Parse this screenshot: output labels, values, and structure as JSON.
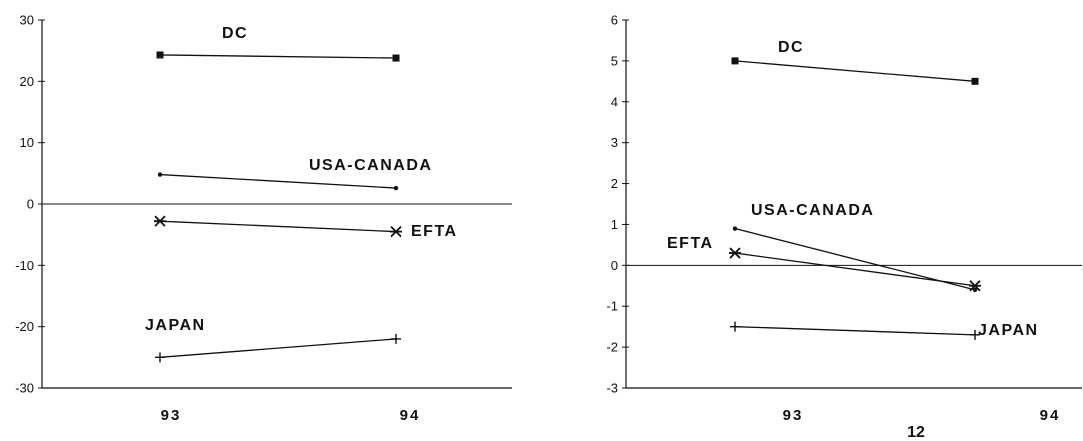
{
  "page": {
    "page_number": "12"
  },
  "chart_data": [
    {
      "type": "line",
      "title": "",
      "xlabel": "",
      "ylabel": "",
      "categories": [
        "93",
        "94"
      ],
      "ylim": [
        -30,
        30
      ],
      "yticks": [
        30,
        20,
        10,
        0,
        -10,
        -20,
        -30
      ],
      "grid": false,
      "zero_line": true,
      "series": [
        {
          "name": "DC",
          "values": [
            24.3,
            23.8
          ],
          "marker": "square"
        },
        {
          "name": "USA-CANADA",
          "values": [
            4.8,
            2.6
          ],
          "marker": "dot"
        },
        {
          "name": "EFTA",
          "values": [
            -2.8,
            -4.5
          ],
          "marker": "star"
        },
        {
          "name": "JAPAN",
          "values": [
            -25,
            -22
          ],
          "marker": "plus"
        }
      ]
    },
    {
      "type": "line",
      "title": "",
      "xlabel": "",
      "ylabel": "",
      "categories": [
        "93",
        "94"
      ],
      "ylim": [
        -3,
        6
      ],
      "yticks": [
        6,
        5,
        4,
        3,
        2,
        1,
        0,
        -1,
        -2,
        -3
      ],
      "grid": false,
      "zero_line": true,
      "series": [
        {
          "name": "DC",
          "values": [
            5.0,
            4.5
          ],
          "marker": "square"
        },
        {
          "name": "USA-CANADA",
          "values": [
            0.9,
            -0.6
          ],
          "marker": "dot"
        },
        {
          "name": "EFTA",
          "values": [
            0.3,
            -0.5
          ],
          "marker": "star"
        },
        {
          "name": "JAPAN",
          "values": [
            -1.5,
            -1.7
          ],
          "marker": "plus"
        }
      ]
    }
  ]
}
